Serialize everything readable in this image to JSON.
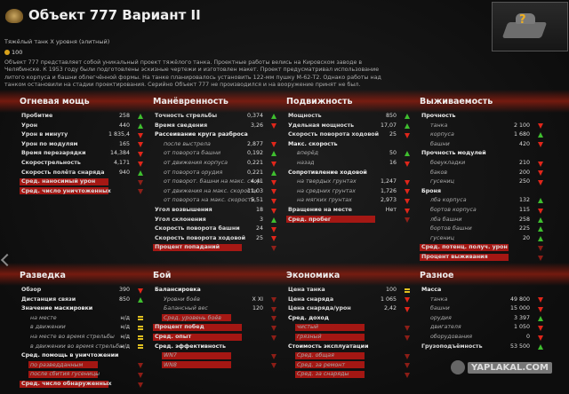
{
  "header": {
    "title": "Объект 777 Вариант II",
    "subtitle": "Тяжёлый танк X уровня (элитный)",
    "gold": "100",
    "description": "Объект 777 представляет собой уникальный проект тяжёлого танка. Проектные работы велись на Кировском заводе в Челябинске. К 1953 году были подготовлены эскизные чертежи и изготовлен макет. Проект предусматривал использование литого корпуса и башни облегчённой формы. На танке планировалось установить 122-мм пушку М-62-Т2. Однако работы над танком остановили на стадии проектирования. Серийно Объект 777 не производился и на вооружение принят не был.",
    "vehicle_icon_label": "?"
  },
  "sections": [
    {
      "title": "Огневая мощь",
      "rows": [
        {
          "label": "Пробитие",
          "value": "258",
          "arrow": "up"
        },
        {
          "label": "Урон",
          "value": "440",
          "arrow": "up"
        },
        {
          "label": "Урон в минуту",
          "value": "1 835,4",
          "arrow": "down"
        },
        {
          "label": "Урон по модулям",
          "value": "165",
          "arrow": "down"
        },
        {
          "label": "Время перезарядки",
          "value": "14,384",
          "arrow": "down"
        },
        {
          "label": "Скорострельность",
          "value": "4,171",
          "arrow": "down"
        },
        {
          "label": "Скорость полёта снаряда",
          "value": "940",
          "arrow": "up"
        },
        {
          "label": "Сред. наносимый урон",
          "kind": "stat"
        },
        {
          "label": "Сред. число уничтоженных",
          "kind": "stat"
        }
      ]
    },
    {
      "title": "Манёвренность",
      "rows": [
        {
          "label": "Точность стрельбы",
          "value": "0,374",
          "arrow": "up"
        },
        {
          "label": "Время сведения",
          "value": "3,26",
          "arrow": "down"
        },
        {
          "label": "Рассеивание круга разброса"
        },
        {
          "label": "после выстрела",
          "value": "2,877",
          "arrow": "down",
          "kind": "sub"
        },
        {
          "label": "от поворота башни",
          "value": "0,192",
          "arrow": "up",
          "kind": "sub"
        },
        {
          "label": "от движения корпуса",
          "value": "0,221",
          "arrow": "down",
          "kind": "sub"
        },
        {
          "label": "от поворота орудия",
          "value": "0,221",
          "arrow": "up",
          "kind": "sub"
        },
        {
          "label": "от поворот. башни на макс. скор.",
          "value": "4,41",
          "arrow": "down",
          "kind": "sub"
        },
        {
          "label": "от движения на макс. скорости",
          "value": "11,03",
          "arrow": "down",
          "kind": "sub"
        },
        {
          "label": "от поворота на макс. скорости",
          "value": "5,51",
          "arrow": "down",
          "kind": "sub"
        },
        {
          "label": "Угол возвышения",
          "value": "18",
          "arrow": "down"
        },
        {
          "label": "Угол склонения",
          "value": "3",
          "arrow": "up"
        },
        {
          "label": "Скорость поворота башни",
          "value": "24",
          "arrow": "down"
        },
        {
          "label": "Скорость поворота ходовой",
          "value": "25",
          "arrow": "down"
        },
        {
          "label": "Процент попаданий",
          "kind": "stat"
        }
      ]
    },
    {
      "title": "Подвижность",
      "rows": [
        {
          "label": "Мощность",
          "value": "850",
          "arrow": "up"
        },
        {
          "label": "Удельная мощность",
          "value": "17,07",
          "arrow": "up"
        },
        {
          "label": "Скорость поворота ходовой",
          "value": "25",
          "arrow": "down"
        },
        {
          "label": "Макс. скорость"
        },
        {
          "label": "вперёд",
          "value": "50",
          "arrow": "up",
          "kind": "sub"
        },
        {
          "label": "назад",
          "value": "16",
          "arrow": "down",
          "kind": "sub"
        },
        {
          "label": "Сопротивление ходовой"
        },
        {
          "label": "на твердых грунтах",
          "value": "1,247",
          "arrow": "down",
          "kind": "sub"
        },
        {
          "label": "на средних грунтах",
          "value": "1,726",
          "arrow": "down",
          "kind": "sub"
        },
        {
          "label": "на мягких грунтах",
          "value": "2,973",
          "arrow": "down",
          "kind": "sub"
        },
        {
          "label": "Вращение на месте",
          "value": "Нет",
          "arrow": "down"
        },
        {
          "label": "Сред. пробег",
          "kind": "stat"
        }
      ]
    },
    {
      "title": "Выживаемость",
      "rows": [
        {
          "label": "Прочность"
        },
        {
          "label": "танка",
          "value": "2 100",
          "arrow": "down",
          "kind": "sub"
        },
        {
          "label": "корпуса",
          "value": "1 680",
          "arrow": "up",
          "kind": "sub"
        },
        {
          "label": "башни",
          "value": "420",
          "arrow": "down",
          "kind": "sub"
        },
        {
          "label": "Прочность модулей"
        },
        {
          "label": "боеукладки",
          "value": "210",
          "arrow": "down",
          "kind": "sub"
        },
        {
          "label": "баков",
          "value": "200",
          "arrow": "down",
          "kind": "sub"
        },
        {
          "label": "гусениц",
          "value": "250",
          "arrow": "down",
          "kind": "sub"
        },
        {
          "label": "Броня"
        },
        {
          "label": "лба корпуса",
          "value": "132",
          "arrow": "up",
          "kind": "sub"
        },
        {
          "label": "бортов корпуса",
          "value": "115",
          "arrow": "down",
          "kind": "sub"
        },
        {
          "label": "лба башни",
          "value": "258",
          "arrow": "up",
          "kind": "sub"
        },
        {
          "label": "бортов башни",
          "value": "225",
          "arrow": "up",
          "kind": "sub"
        },
        {
          "label": "гусениц",
          "value": "20",
          "arrow": "up",
          "kind": "sub"
        },
        {
          "label": "Сред. потенц. получ. урон",
          "kind": "stat"
        },
        {
          "label": "Процент выживания",
          "kind": "stat"
        }
      ]
    },
    {
      "title": "Разведка",
      "rows": [
        {
          "label": "Обзор",
          "value": "390",
          "arrow": "down"
        },
        {
          "label": "Дистанция связи",
          "value": "850",
          "arrow": "up"
        },
        {
          "label": "Значение маскировки"
        },
        {
          "label": "на месте",
          "value": "н/д",
          "arrow": "same",
          "kind": "sub"
        },
        {
          "label": "в движении",
          "value": "н/д",
          "arrow": "same",
          "kind": "sub"
        },
        {
          "label": "на месте во время стрельбы",
          "value": "н/д",
          "arrow": "same",
          "kind": "sub"
        },
        {
          "label": "в движении во время стрельбы",
          "value": "н/д",
          "arrow": "same",
          "kind": "sub"
        },
        {
          "label": "Сред. помощь в уничтожении"
        },
        {
          "label": "по разведданным",
          "kind": "substat"
        },
        {
          "label": "после сбития гусеницы",
          "kind": "substat"
        },
        {
          "label": "Сред. число обнаруженных",
          "kind": "stat"
        }
      ]
    },
    {
      "title": "Бой",
      "rows": [
        {
          "label": "Балансировка"
        },
        {
          "label": "Уровни боёв",
          "value": "X  XI",
          "kind": "sub"
        },
        {
          "label": "Балансный вес",
          "value": "120",
          "kind": "sub"
        },
        {
          "label": "Сред. уровень боёв",
          "kind": "substat"
        },
        {
          "label": "Процент побед",
          "kind": "stat"
        },
        {
          "label": "Сред. опыт",
          "kind": "stat"
        },
        {
          "label": "Сред. эффективность"
        },
        {
          "label": "WN7",
          "kind": "substat"
        },
        {
          "label": "WN8",
          "kind": "substat"
        }
      ]
    },
    {
      "title": "Экономика",
      "rows": [
        {
          "label": "Цена танка",
          "value": "100",
          "arrow": "same"
        },
        {
          "label": "Цена снаряда",
          "value": "1 065",
          "arrow": "down"
        },
        {
          "label": "Цена снаряда/урон",
          "value": "2,42",
          "arrow": "down"
        },
        {
          "label": "Сред. доход"
        },
        {
          "label": "чистый",
          "kind": "substat"
        },
        {
          "label": "грязный",
          "kind": "substat"
        },
        {
          "label": "Стоимость эксплуатации"
        },
        {
          "label": "Сред. общая",
          "kind": "substat"
        },
        {
          "label": "Сред. за ремонт",
          "kind": "substat"
        },
        {
          "label": "Сред. за снаряды",
          "kind": "substat"
        }
      ]
    },
    {
      "title": "Разное",
      "rows": [
        {
          "label": "Масса"
        },
        {
          "label": "танка",
          "value": "49 800",
          "arrow": "down",
          "kind": "sub"
        },
        {
          "label": "башни",
          "value": "15 000",
          "arrow": "down",
          "kind": "sub"
        },
        {
          "label": "орудия",
          "value": "3 397",
          "arrow": "up",
          "kind": "sub"
        },
        {
          "label": "двигателя",
          "value": "1 050",
          "arrow": "down",
          "kind": "sub"
        },
        {
          "label": "оборудования",
          "value": "0",
          "arrow": "down",
          "kind": "sub"
        },
        {
          "label": "Грузоподъёмность",
          "value": "53 500",
          "arrow": "up"
        }
      ]
    }
  ],
  "watermark": "YAPLAKAL.COM"
}
